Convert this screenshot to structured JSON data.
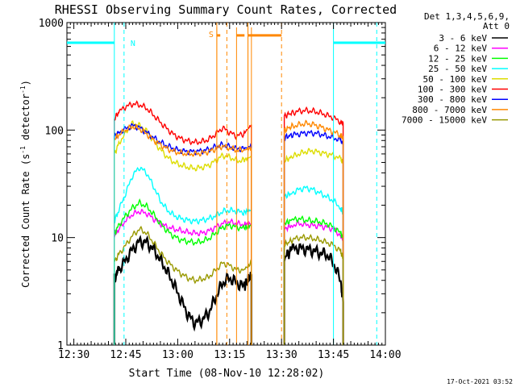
{
  "chart_data": {
    "type": "line",
    "title": "RHESSI Observing Summary Count Rates, Corrected",
    "xlabel": "Start Time (08-Nov-10 12:28:02)",
    "ylabel": "Corrected Count Rate (s⁻¹ detector⁻¹)",
    "ylabel_parts": {
      "main": "Corrected Count Rate (s",
      "sup1": "-1",
      "mid": " detector",
      "sup2": "-1",
      "end": ")"
    },
    "x_unit": "minutes after 12:28:02",
    "xlim": [
      0,
      92
    ],
    "ylim": [
      1,
      1000
    ],
    "y_scale": "log",
    "x_ticks": [
      {
        "label": "12:30",
        "value": 2
      },
      {
        "label": "12:45",
        "value": 17
      },
      {
        "label": "13:00",
        "value": 32
      },
      {
        "label": "13:15",
        "value": 47
      },
      {
        "label": "13:30",
        "value": 62
      },
      {
        "label": "13:45",
        "value": 77
      },
      {
        "label": "14:00",
        "value": 92
      }
    ],
    "y_ticks": [
      {
        "label": "1",
        "value": 1
      },
      {
        "label": "10",
        "value": 10
      },
      {
        "label": "100",
        "value": 100
      },
      {
        "label": "1000",
        "value": 1000
      }
    ],
    "legend": {
      "placement": "right",
      "header_line1": "Det 1,3,4,5,6,9,",
      "header_line2": "Att 0",
      "entries": [
        {
          "label": "3 - 6 keV",
          "color": "#000000"
        },
        {
          "label": "6 - 12 keV",
          "color": "#ff00ff"
        },
        {
          "label": "12 - 25 keV",
          "color": "#00ff00"
        },
        {
          "label": "25 - 50 keV",
          "color": "#00ffff"
        },
        {
          "label": "50 - 100 keV",
          "color": "#dddd00"
        },
        {
          "label": "100 - 300 keV",
          "color": "#ff0000"
        },
        {
          "label": "300 - 800 keV",
          "color": "#0000ff"
        },
        {
          "label": "800 - 7000 keV",
          "color": "#ff8800"
        },
        {
          "label": "7000 - 15000 keV",
          "color": "#999900"
        }
      ]
    },
    "series_x": [
      13.7,
      15,
      17,
      19,
      21,
      23,
      25,
      27,
      29,
      31,
      33,
      35,
      37,
      39,
      41,
      43,
      45,
      47,
      49,
      51,
      53.3,
      62.8,
      65,
      67,
      69,
      71,
      73,
      75,
      77,
      79,
      79.8
    ],
    "series": [
      {
        "name": "3 - 6 keV",
        "color": "#000000",
        "values": [
          4.2,
          5.0,
          6.2,
          7.8,
          9.2,
          9.0,
          7.8,
          6.2,
          4.8,
          3.6,
          2.6,
          1.9,
          1.6,
          1.7,
          2.0,
          2.8,
          3.8,
          4.2,
          3.8,
          3.5,
          4.5,
          6.5,
          7.8,
          8.0,
          7.8,
          7.6,
          7.2,
          7.0,
          5.8,
          4.0,
          2.5
        ]
      },
      {
        "name": "6 - 12 keV",
        "color": "#ff00ff",
        "values": [
          10.5,
          12.0,
          14.5,
          16.5,
          17.5,
          16.8,
          15.0,
          13.5,
          12.5,
          12.0,
          11.6,
          11.2,
          11.0,
          11.0,
          11.5,
          12.5,
          13.5,
          14.0,
          13.5,
          13.2,
          13.5,
          12.0,
          13.0,
          13.5,
          13.2,
          13.0,
          12.8,
          12.5,
          12.0,
          10.5,
          9.5
        ]
      },
      {
        "name": "12 - 25 keV",
        "color": "#00ff00",
        "values": [
          11.0,
          13.0,
          16.0,
          19.0,
          21.0,
          19.5,
          16.5,
          13.5,
          11.5,
          10.2,
          9.5,
          9.2,
          9.0,
          9.2,
          9.8,
          11.0,
          12.5,
          13.0,
          12.5,
          12.2,
          13.0,
          13.5,
          14.5,
          15.0,
          14.5,
          14.3,
          14.0,
          13.5,
          12.5,
          11.0,
          10.0
        ]
      },
      {
        "name": "25 - 50 keV",
        "color": "#00ffff",
        "values": [
          14.0,
          18.0,
          26.0,
          38.0,
          45.0,
          40.0,
          30.0,
          22.0,
          18.0,
          16.0,
          15.0,
          14.5,
          14.2,
          14.5,
          15.0,
          16.0,
          17.5,
          18.0,
          17.5,
          17.2,
          18.0,
          24.0,
          26.0,
          28.0,
          29.0,
          28.0,
          26.0,
          24.0,
          22.0,
          19.0,
          17.0
        ]
      },
      {
        "name": "50 - 100 keV",
        "color": "#dddd00",
        "values": [
          60.0,
          75.0,
          95.0,
          115.0,
          110.0,
          98.0,
          80.0,
          66.0,
          56.0,
          50.0,
          47.0,
          45.0,
          44.0,
          45.0,
          47.0,
          52.0,
          58.0,
          56.0,
          52.0,
          52.0,
          57.0,
          52.0,
          56.0,
          60.0,
          63.0,
          64.0,
          62.0,
          60.0,
          58.0,
          54.0,
          50.0
        ]
      },
      {
        "name": "100 - 300 keV",
        "color": "#ff0000",
        "values": [
          125.0,
          148.0,
          165.0,
          175.0,
          172.0,
          160.0,
          138.0,
          118.0,
          102.0,
          90.0,
          83.0,
          79.0,
          77.0,
          78.0,
          82.0,
          92.0,
          105.0,
          95.0,
          88.0,
          92.0,
          112.0,
          135.0,
          145.0,
          150.0,
          152.0,
          150.0,
          145.0,
          138.0,
          130.0,
          120.0,
          115.0
        ]
      },
      {
        "name": "300 - 800 keV",
        "color": "#0000ff",
        "values": [
          88.0,
          95.0,
          103.0,
          110.0,
          105.0,
          95.0,
          85.0,
          77.0,
          71.0,
          67.0,
          64.0,
          63.0,
          63.0,
          64.0,
          66.0,
          70.0,
          73.0,
          70.0,
          67.0,
          67.0,
          71.0,
          85.0,
          90.0,
          92.0,
          94.0,
          94.0,
          92.0,
          88.0,
          85.0,
          80.0,
          75.0
        ]
      },
      {
        "name": "800 - 7000 keV",
        "color": "#ff8800",
        "values": [
          82.0,
          90.0,
          100.0,
          108.0,
          103.0,
          92.0,
          81.0,
          73.0,
          67.0,
          63.0,
          61.0,
          60.0,
          60.0,
          61.0,
          63.0,
          67.0,
          71.0,
          68.0,
          65.0,
          65.0,
          68.0,
          100.0,
          108.0,
          112.0,
          115.0,
          113.0,
          108.0,
          102.0,
          96.0,
          90.0,
          85.0
        ]
      },
      {
        "name": "7000 - 15000 keV",
        "color": "#999900",
        "values": [
          6.0,
          7.0,
          8.5,
          10.5,
          12.0,
          11.0,
          9.0,
          7.2,
          6.0,
          5.2,
          4.6,
          4.2,
          4.0,
          4.1,
          4.3,
          5.0,
          5.8,
          5.5,
          5.0,
          5.0,
          5.8,
          8.5,
          9.5,
          10.0,
          10.0,
          9.8,
          9.5,
          9.0,
          8.5,
          7.5,
          6.5
        ]
      }
    ],
    "markers": [
      {
        "name": "night",
        "label": "N",
        "color": "#00ffff",
        "level": 650,
        "spans": [
          [
            0,
            13.7
          ],
          [
            77,
            92
          ]
        ],
        "boundaries": [
          13.7,
          77
        ],
        "dashed": [
          16.5,
          89.5
        ]
      },
      {
        "name": "saa",
        "label": "S",
        "color": "#ff8800",
        "level": 760,
        "spans": [
          [
            43.3,
            44.3
          ],
          [
            49.0,
            51.3
          ],
          [
            52.3,
            62.0
          ]
        ],
        "boundaries": [
          43.3,
          52.3
        ],
        "dashed": [
          46.2,
          62.0
        ],
        "vertical_pairs": [
          [
            43.3,
            49.0
          ],
          [
            52.3,
            53.3
          ]
        ]
      }
    ]
  },
  "footer_timestamp": "17-Oct-2021 03:52"
}
